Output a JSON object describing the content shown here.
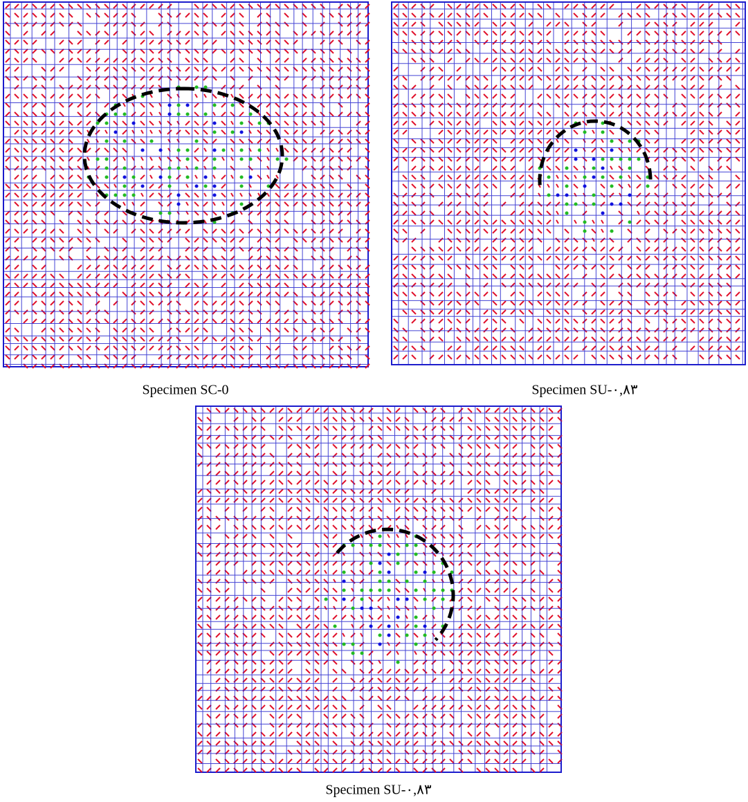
{
  "panels": [
    {
      "caption": "Specimen SC-0"
    },
    {
      "caption": "Specimen SU-۰,۸۳"
    },
    {
      "caption": "Specimen SU-۰,۸۳"
    }
  ]
}
